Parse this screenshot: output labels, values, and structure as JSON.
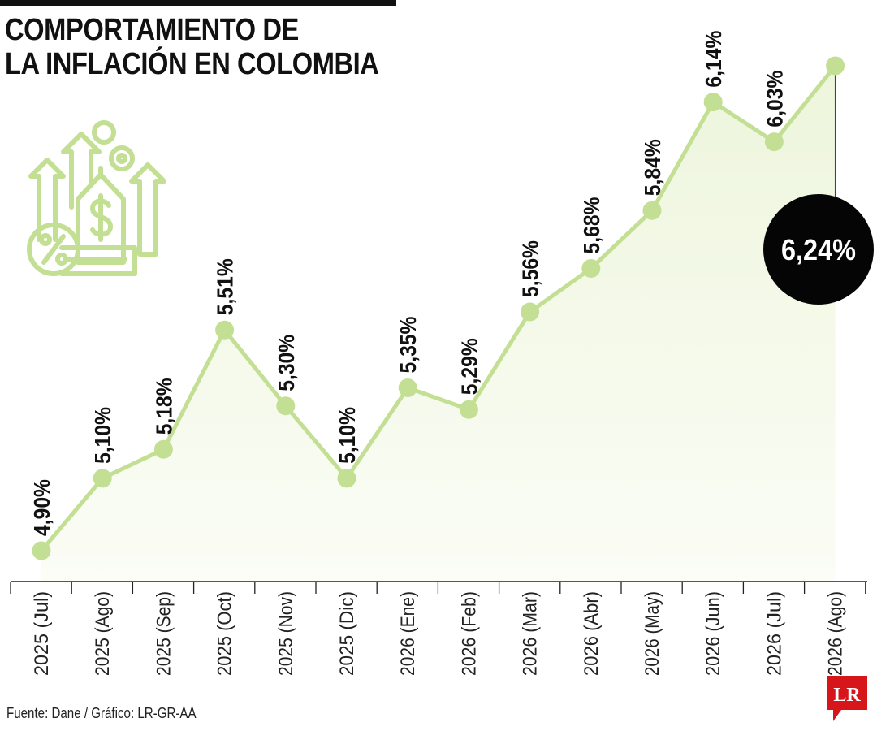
{
  "title": {
    "line1": "COMPORTAMIENTO DE",
    "line2": "LA INFLACIÓN EN COLOMBIA"
  },
  "source": "Fuente: Dane / Gráfico: LR-GR-AA",
  "logo_text": "LR",
  "colors": {
    "line": "#c3df94",
    "marker": "#c3df94",
    "area_top": "#edf5dc",
    "area_bottom": "#fbfdf6",
    "axis": "#222222",
    "text": "#111111",
    "highlight_bg": "#050505",
    "highlight_text": "#ffffff",
    "logo_red": "#d7161b"
  },
  "chart_data": {
    "type": "line",
    "title": "COMPORTAMIENTO DE LA INFLACIÓN EN COLOMBIA",
    "xlabel": "",
    "ylabel": "",
    "categories": [
      "2025 (Jul)",
      "2025 (Ago)",
      "2025 (Sep)",
      "2025 (Oct)",
      "2025 (Nov)",
      "2025 (Dic)",
      "2026 (Ene)",
      "2026 (Feb)",
      "2026 (Mar)",
      "2026 (Abr)",
      "2026 (May)",
      "2026 (Jun)",
      "2026 (Jul)",
      "2026 (Ago)"
    ],
    "values": [
      4.9,
      5.1,
      5.18,
      5.51,
      5.3,
      5.1,
      5.35,
      5.29,
      5.56,
      5.68,
      5.84,
      6.14,
      6.03,
      6.24
    ],
    "labels": [
      "4,90%",
      "5,10%",
      "5,18%",
      "5,51%",
      "5,30%",
      "5,10%",
      "5,35%",
      "5,29%",
      "5,56%",
      "5,68%",
      "5,84%",
      "6,14%",
      "6,03%",
      "6,24%"
    ],
    "highlight_label": "6,24%",
    "ylim": [
      4.9,
      6.24
    ],
    "grid": false,
    "legend": "none"
  }
}
